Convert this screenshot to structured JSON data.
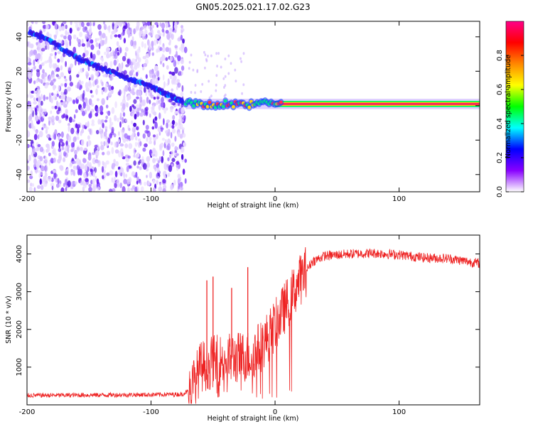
{
  "title": "GN05.2025.021.17.02.G23",
  "chart_data": [
    {
      "type": "heatmap",
      "title": "GN05.2025.021.17.02.G23",
      "xlabel": "Height of straight line (km)",
      "ylabel": "Frequency (Hz)",
      "xlim": [
        -200,
        165
      ],
      "ylim": [
        -50,
        49
      ],
      "xticks": [
        -200,
        -100,
        0,
        100
      ],
      "yticks": [
        -40,
        -20,
        0,
        20,
        40
      ],
      "noise_region_x": [
        -200,
        -72
      ],
      "tone_region_x": [
        -72,
        165
      ],
      "tone_frequency_hz": 1,
      "chirp_track": {
        "x": [
          -198,
          -180,
          -160,
          -140,
          -120,
          -100,
          -85,
          -74
        ],
        "y": [
          43,
          37,
          28,
          22,
          16,
          11,
          6,
          2
        ]
      },
      "colorbar": {
        "label": "Normalized spectral amplitude",
        "range": [
          0.0,
          1.0
        ],
        "ticks": [
          0.0,
          0.2,
          0.4,
          0.6,
          0.8
        ],
        "tick_labels": [
          "0.0",
          "0.2",
          "0.4",
          "0.6",
          "0.8"
        ],
        "colormap": [
          "#ffffff",
          "#8800ff",
          "#0000ff",
          "#00ffff",
          "#00ff00",
          "#ffff00",
          "#ff8800",
          "#ff0000",
          "#ff0088"
        ]
      }
    },
    {
      "type": "line",
      "xlabel": "Height of straight line (km)",
      "ylabel": "SNR (10 * v/v)",
      "xlim": [
        -200,
        165
      ],
      "ylim": [
        0,
        4500
      ],
      "xticks": [
        -200,
        -100,
        0,
        100
      ],
      "yticks": [
        1000,
        2000,
        3000,
        4000
      ],
      "series": [
        {
          "name": "SNR",
          "color": "#ee2222",
          "x": [
            -200,
            -150,
            -100,
            -75,
            -68,
            -60,
            -50,
            -40,
            -30,
            -20,
            -10,
            0,
            10,
            20,
            30,
            40,
            60,
            80,
            100,
            120,
            140,
            165
          ],
          "y": [
            250,
            260,
            270,
            280,
            400,
            1000,
            1150,
            1200,
            1250,
            1300,
            1600,
            2100,
            2700,
            3300,
            3800,
            3950,
            4000,
            4020,
            3980,
            3900,
            3880,
            3750
          ]
        }
      ],
      "spikes": [
        {
          "x": -55,
          "y": 3300
        },
        {
          "x": -50,
          "y": 3400
        },
        {
          "x": -35,
          "y": 3100
        },
        {
          "x": -22,
          "y": 3650
        }
      ]
    }
  ]
}
